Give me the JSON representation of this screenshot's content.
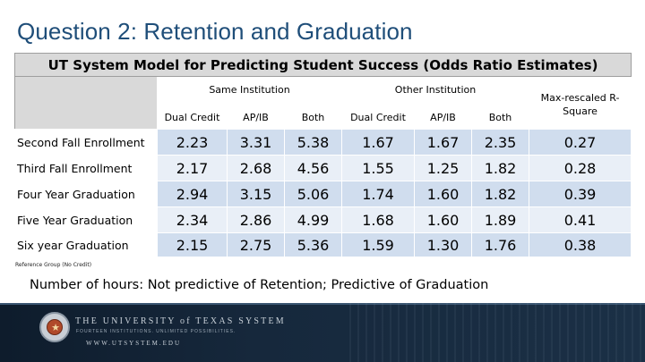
{
  "slide": {
    "title": "Question 2: Retention and Graduation"
  },
  "table": {
    "caption": "UT System Model for Predicting Student Success (Odds Ratio Estimates)",
    "groups": {
      "same": "Same Institution",
      "other": "Other Institution",
      "r2": "Max-rescaled R-Square"
    },
    "columns": [
      "Dual Credit",
      "AP/IB",
      "Both",
      "Dual Credit",
      "AP/IB",
      "Both"
    ],
    "rows": [
      {
        "label": "Second Fall Enrollment",
        "values": [
          "2.23",
          "3.31",
          "5.38",
          "1.67",
          "1.67",
          "2.35",
          "0.27"
        ]
      },
      {
        "label": "Third Fall Enrollment",
        "values": [
          "2.17",
          "2.68",
          "4.56",
          "1.55",
          "1.25",
          "1.82",
          "0.28"
        ]
      },
      {
        "label": "Four Year Graduation",
        "values": [
          "2.94",
          "3.15",
          "5.06",
          "1.74",
          "1.60",
          "1.82",
          "0.39"
        ]
      },
      {
        "label": "Five Year Graduation",
        "values": [
          "2.34",
          "2.86",
          "4.99",
          "1.68",
          "1.60",
          "1.89",
          "0.41"
        ]
      },
      {
        "label": "Six year Graduation",
        "values": [
          "2.15",
          "2.75",
          "5.36",
          "1.59",
          "1.30",
          "1.76",
          "0.38"
        ]
      }
    ],
    "footnote": "Reference Group (No Credit)"
  },
  "summary": "Number of hours: Not predictive of Retention; Predictive of Graduation",
  "footer": {
    "org_name": "THE UNIVERSITY of TEXAS SYSTEM",
    "org_tagline": "FOURTEEN INSTITUTIONS. UNLIMITED POSSIBILITIES.",
    "url": "WWW.UTSYSTEM.EDU",
    "band_color": "#16283c"
  },
  "colors": {
    "title": "#1f4e79",
    "header_grey": "#d9d9d9",
    "row_light": "#e9eff7",
    "row_dark": "#d0ddee"
  }
}
